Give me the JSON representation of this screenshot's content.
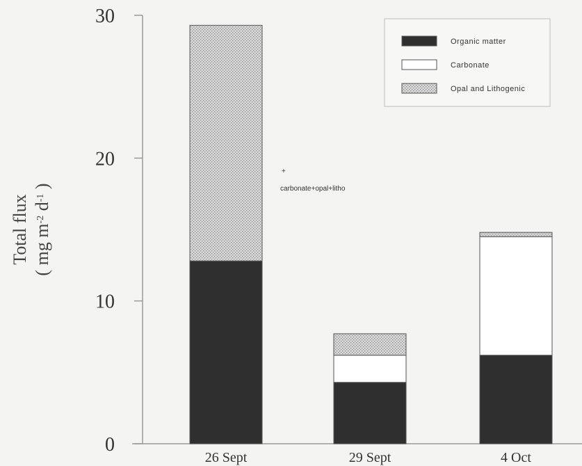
{
  "chart_data": {
    "type": "bar",
    "stacked": true,
    "categories": [
      "26 Sept",
      "29 Sept",
      "4 Oct"
    ],
    "series": [
      {
        "name": "Organic matter",
        "values": [
          12.8,
          4.3,
          6.2
        ],
        "color": "#2f2f2f",
        "pattern": "solid"
      },
      {
        "name": "Carbonate",
        "values": [
          0,
          1.9,
          8.3
        ],
        "color": "#ffffff",
        "pattern": "solid"
      },
      {
        "name": "Opal and Lithogenic",
        "values": [
          16.5,
          1.5,
          0.3
        ],
        "color": "#cfcfcf",
        "pattern": "dots"
      }
    ],
    "ylabel_line1": "Total flux",
    "ylabel_line2": "( mg m",
    "ylabel_sup1": "-2",
    "ylabel_mid": " d",
    "ylabel_sup2": "-1",
    "ylabel_end": " )",
    "yticks": [
      "0",
      "10",
      "20",
      "30"
    ],
    "ylim": [
      0,
      30
    ],
    "legend_position": "top-right",
    "annotation": {
      "marker": "+",
      "text": "carbonate+opal+litho"
    }
  }
}
